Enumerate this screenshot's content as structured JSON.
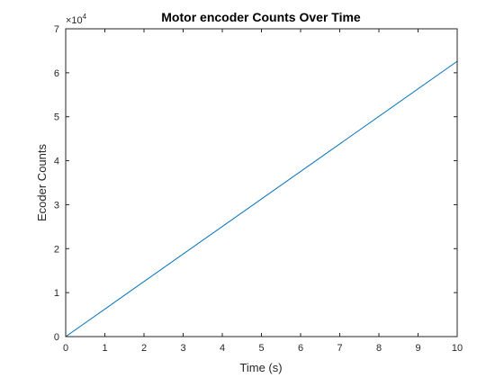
{
  "chart_data": {
    "type": "line",
    "title": "Motor encoder Counts Over Time",
    "xlabel": "Time (s)",
    "ylabel": "Ecoder Counts",
    "xlim": [
      0,
      10
    ],
    "ylim": [
      0,
      70000
    ],
    "xticks": [
      0,
      1,
      2,
      3,
      4,
      5,
      6,
      7,
      8,
      9,
      10
    ],
    "yticks": [
      0,
      10000,
      20000,
      30000,
      40000,
      50000,
      60000,
      70000
    ],
    "ytick_labels": [
      "0",
      "1",
      "2",
      "3",
      "4",
      "5",
      "6",
      "7"
    ],
    "y_exponent": {
      "base": "×10",
      "power": "4"
    },
    "grid": false,
    "series": [
      {
        "color": "#0072bd",
        "x": [
          0,
          10
        ],
        "y": [
          0,
          62600
        ]
      }
    ]
  }
}
